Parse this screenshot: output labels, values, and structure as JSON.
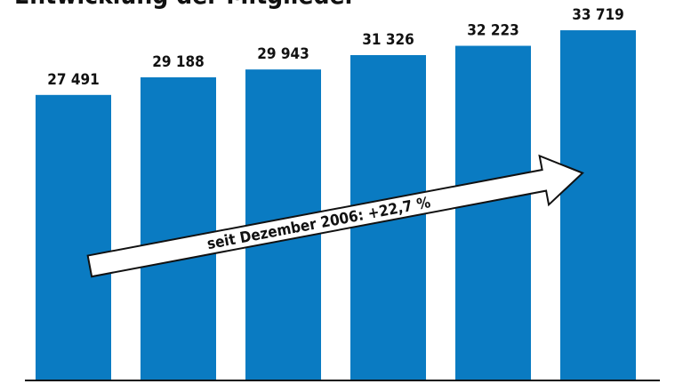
{
  "chart_data": {
    "type": "bar",
    "title": "Entwicklung der Mitglieder",
    "annotation": "seit Dezember 2006: +22,7 %",
    "categories": [
      null,
      null,
      null,
      null,
      null,
      null
    ],
    "values": [
      27491,
      29188,
      29943,
      31326,
      32223,
      33719
    ],
    "value_labels": [
      "27 491",
      "29 188",
      "29 943",
      "31 326",
      "32 223",
      "33 719"
    ],
    "color": "#0a7bc2",
    "ylim": [
      0,
      36000
    ]
  }
}
